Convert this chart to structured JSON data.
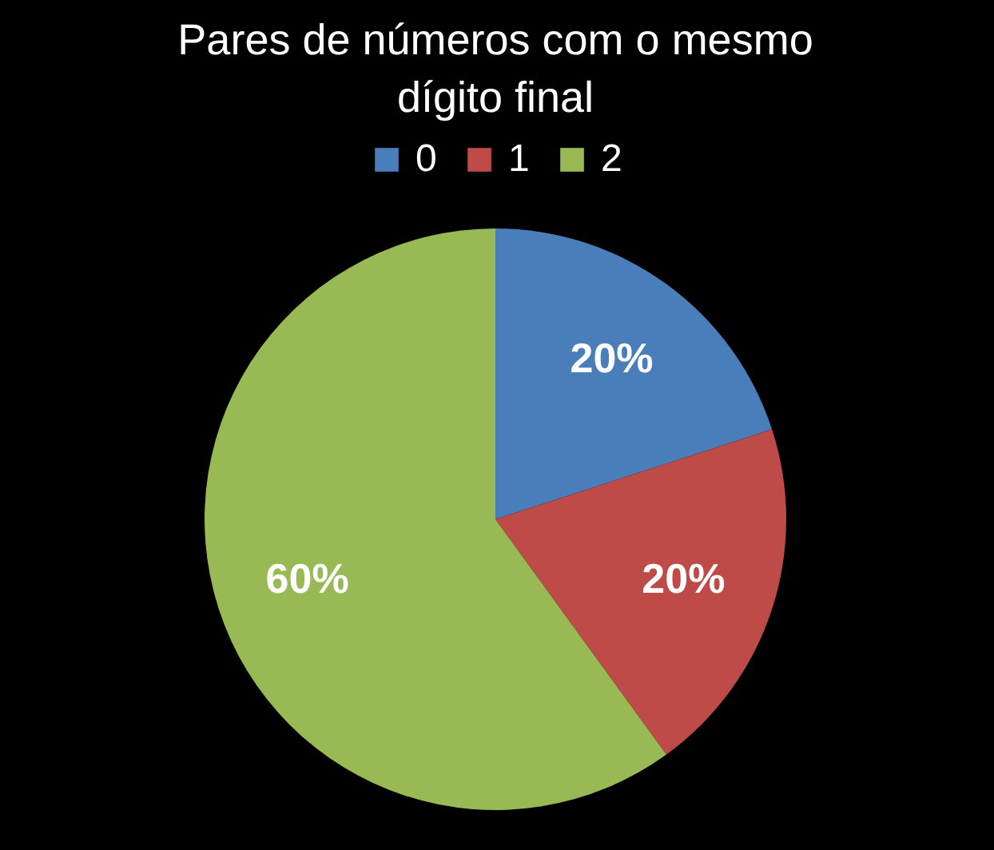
{
  "chart_data": {
    "type": "pie",
    "title": "Pares de números com o mesmo dígito final",
    "categories": [
      "0",
      "1",
      "2"
    ],
    "values": [
      20,
      20,
      60
    ],
    "colors": [
      "#4a7ebb",
      "#be4b48",
      "#98b954"
    ],
    "value_labels": [
      "20%",
      "20%",
      "60%"
    ],
    "legend": "top"
  }
}
